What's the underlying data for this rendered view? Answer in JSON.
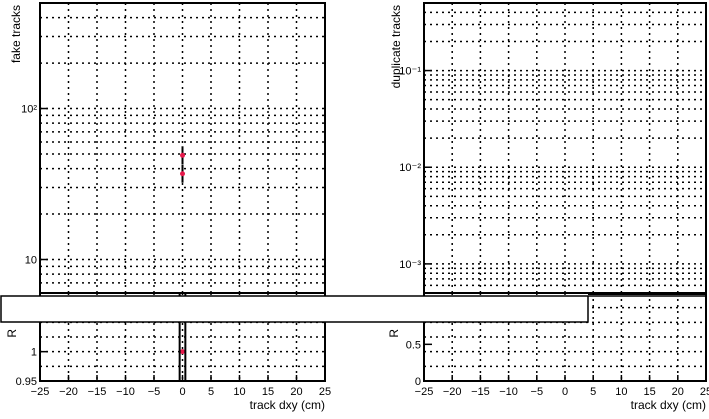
{
  "chart_data": [
    {
      "type": "scatter",
      "title": "",
      "xlabel": "track dxy (cm)",
      "ylabel": "fake tracks",
      "yscale": "log",
      "xlim": [
        -25,
        25
      ],
      "ylim": [
        6,
        500
      ],
      "x_ticks": [
        -25,
        -20,
        -15,
        -10,
        -5,
        0,
        5,
        10,
        15,
        20,
        25
      ],
      "x_tick_labels": [
        "−25",
        "−20",
        "−15",
        "−10",
        "−5",
        "0",
        "5",
        "10",
        "15",
        "20",
        "25"
      ],
      "y_tick_labels": [
        {
          "v": 10,
          "t": "10"
        },
        {
          "v": 100,
          "t": "10²"
        }
      ],
      "points": [
        {
          "x": 0,
          "y": 37
        },
        {
          "x": 0,
          "y": 49
        }
      ],
      "marker_color": "#e6194b",
      "grid": true
    },
    {
      "type": "line",
      "title": "",
      "xlabel": "track dxy (cm)",
      "ylabel": "duplicate tracks",
      "yscale": "log",
      "xlim": [
        -25,
        25
      ],
      "ylim": [
        0.0005,
        0.5
      ],
      "x_ticks": [
        -25,
        -20,
        -15,
        -10,
        -5,
        0,
        5,
        10,
        15,
        20,
        25
      ],
      "x_tick_labels": [
        "−25",
        "−20",
        "−15",
        "−10",
        "−5",
        "0",
        "5",
        "10",
        "15",
        "20",
        "25"
      ],
      "y_tick_labels": [
        {
          "v": 0.001,
          "t": "10⁻³"
        },
        {
          "v": 0.01,
          "t": "10⁻²"
        },
        {
          "v": 0.1,
          "t": "10⁻¹"
        }
      ],
      "points": [],
      "grid": true
    },
    {
      "type": "scatter",
      "title": "",
      "xlabel": "track dxy (cm)",
      "ylabel": "R",
      "xlim": [
        -25,
        25
      ],
      "ylim": [
        0.95,
        1.1
      ],
      "y_tick_labels": [
        {
          "v": 0.95,
          "t": "0.95"
        },
        {
          "v": 1,
          "t": "1"
        }
      ],
      "points": [
        {
          "x": 0,
          "y": 1
        }
      ],
      "marker_color": "#e6194b",
      "grid": true
    },
    {
      "type": "scatter",
      "title": "",
      "xlabel": "track dxy (cm)",
      "ylabel": "R",
      "xlim": [
        -25,
        25
      ],
      "ylim": [
        0,
        1.2
      ],
      "y_tick_labels": [
        {
          "v": 0,
          "t": "0"
        },
        {
          "v": 0.5,
          "t": "0.5"
        }
      ],
      "points": [],
      "grid": true
    }
  ]
}
